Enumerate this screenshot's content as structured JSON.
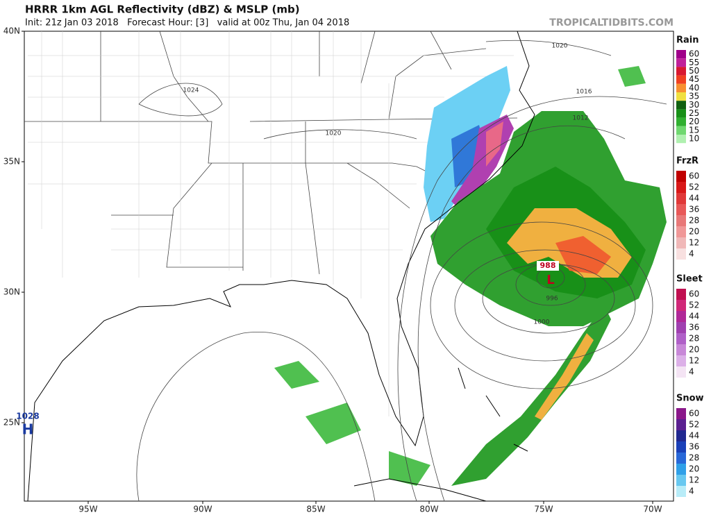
{
  "header": {
    "title": "HRRR 1km AGL Reflectivity (dBZ) & MSLP (mb)",
    "subtitle": "Init: 21z Jan 03 2018   Forecast Hour: [3]   valid at 00z Thu, Jan 04 2018",
    "source": "TROPICALTIDBITS.COM"
  },
  "map": {
    "latitudes": [
      "40N",
      "35N",
      "30N",
      "25N"
    ],
    "longitudes": [
      "95W",
      "90W",
      "85W",
      "80W",
      "75W",
      "70W"
    ],
    "isobars": [
      "1024",
      "1020",
      "1020",
      "1016",
      "1012",
      "1000",
      "996",
      "988"
    ],
    "high": {
      "pressure": "1028",
      "symbol": "H"
    },
    "low": {
      "symbol": "L"
    }
  },
  "legends": [
    {
      "title": "Rain",
      "items": [
        {
          "label": "60",
          "color": "#a0008a"
        },
        {
          "label": "55",
          "color": "#c0209a"
        },
        {
          "label": "50",
          "color": "#d81830"
        },
        {
          "label": "45",
          "color": "#f04020"
        },
        {
          "label": "40",
          "color": "#f89030"
        },
        {
          "label": "35",
          "color": "#f0e040"
        },
        {
          "label": "30",
          "color": "#106010"
        },
        {
          "label": "25",
          "color": "#189018"
        },
        {
          "label": "20",
          "color": "#30b030"
        },
        {
          "label": "15",
          "color": "#70d870"
        },
        {
          "label": "10",
          "color": "#b0f0b0"
        }
      ]
    },
    {
      "title": "FrzR",
      "items": [
        {
          "label": "60",
          "color": "#c00000"
        },
        {
          "label": "52",
          "color": "#d81818"
        },
        {
          "label": "44",
          "color": "#e03838"
        },
        {
          "label": "36",
          "color": "#e85858"
        },
        {
          "label": "28",
          "color": "#e87878"
        },
        {
          "label": "20",
          "color": "#f09898"
        },
        {
          "label": "12",
          "color": "#f0b8b8"
        },
        {
          "label": "4",
          "color": "#f8e0e0"
        }
      ]
    },
    {
      "title": "Sleet",
      "items": [
        {
          "label": "60",
          "color": "#c01050"
        },
        {
          "label": "52",
          "color": "#d02878"
        },
        {
          "label": "44",
          "color": "#b02898"
        },
        {
          "label": "36",
          "color": "#a040b0"
        },
        {
          "label": "28",
          "color": "#b060c8"
        },
        {
          "label": "20",
          "color": "#c888d8"
        },
        {
          "label": "12",
          "color": "#dcb0e8"
        },
        {
          "label": "4",
          "color": "#f4e4f4"
        }
      ]
    },
    {
      "title": "Snow",
      "items": [
        {
          "label": "60",
          "color": "#8a188a"
        },
        {
          "label": "52",
          "color": "#5a2090"
        },
        {
          "label": "44",
          "color": "#202890"
        },
        {
          "label": "36",
          "color": "#1a40b8"
        },
        {
          "label": "28",
          "color": "#2868d8"
        },
        {
          "label": "20",
          "color": "#30a0e8"
        },
        {
          "label": "12",
          "color": "#68c8f0"
        },
        {
          "label": "4",
          "color": "#b8ecf8"
        }
      ]
    }
  ]
}
